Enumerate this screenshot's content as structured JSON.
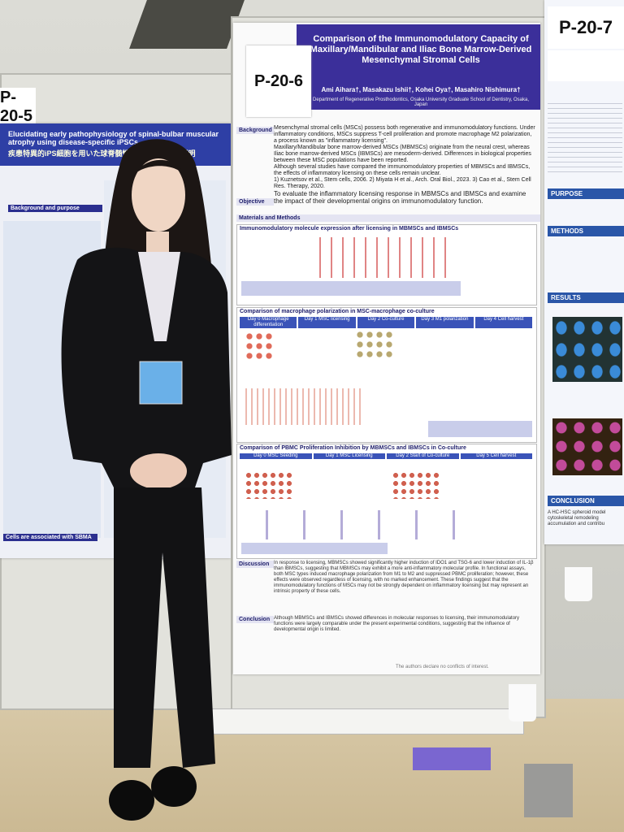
{
  "left_poster": {
    "number": "P-20-5",
    "title": "Elucidating early pathophysiology of spinal-bulbar muscular atrophy using disease-specific iPSCs",
    "title_jp": "疾患特異的iPS細胞を用いた球脊髄性筋萎縮症の病態解明",
    "sections": [
      "Background and purpose",
      "Cells are associated with SBMA"
    ]
  },
  "center_poster": {
    "number": "P-20-6",
    "title": "Comparison of the Immunomodulatory Capacity of Maxillary/Mandibular and Iliac Bone Marrow-Derived Mesenchymal Stromal Cells",
    "authors": "Ami Aihara†, Masakazu Ishii†, Kohei Oya†, Masahiro Nishimura†",
    "affiliation": "Department of Regenerative Prosthodontics, Osaka University Graduate School of Dentistry, Osaka, Japan",
    "background": {
      "heading": "Background",
      "bullets": [
        "Mesenchymal stromal cells (MSCs) possess both regenerative and immunomodulatory functions. Under inflammatory conditions, MSCs suppress T-cell proliferation and promote macrophage M2 polarization, a process known as \"inflammatory licensing\".",
        "Maxillary/Mandibular bone marrow-derived MSCs (MBMSCs) originate from the neural crest, whereas Iliac bone marrow-derived MSCs (IBMSCs) are mesoderm-derived. Differences in biological properties between these MSC populations have been reported.",
        "Although several studies have compared the immunomodulatory properties of MBMSCs and IBMSCs, the effects of inflammatory licensing on these cells remain unclear.",
        "1) Kuznetsov et al., Stem cells, 2006.  2) Miyata H et al., Arch. Oral Biol., 2023.  3) Cao et al., Stem Cell Res. Therapy, 2020."
      ]
    },
    "objective": {
      "heading": "Objective",
      "text": "To evaluate the inflammatory licensing response in MBMSCs and IBMSCs and examine the impact of their developmental origins on immunomodulatory function."
    },
    "methods": {
      "heading": "Materials and Methods",
      "panels": [
        "Immunomodulatory molecule expression after licensing in MBMSCs and IBMSCs",
        "Comparison of macrophage polarization in MSC-macrophage co-culture",
        "Comparison of PBMC Proliferation Inhibition by MBMSCs and IBMSCs in Co-culture"
      ],
      "timeline1": [
        "Day 0 Macrophage differentiation",
        "Day 1 MSC licensing",
        "Day 2 Co-culture",
        "Day 3 M1 polarization",
        "Day 4 Cell harvest"
      ],
      "timeline2": [
        "Day 0 MSC Seeding",
        "Day 1 MSC Licensing",
        "Day 2 Start of Co-culture",
        "Day 5 Cell harvest"
      ]
    },
    "discussion": {
      "heading": "Discussion",
      "text": "In response to licensing, MBMSCs showed significantly higher induction of IDO1 and TSG-6 and lower induction of IL-1β than IBMSCs, suggesting that MBMSCs may exhibit a more anti-inflammatory molecular profile. In functional assays, both MSC types induced macrophage polarization from M1 to M2 and suppressed PBMC proliferation; however, these effects were observed regardless of licensing, with no marked enhancement. These findings suggest that the immunomodulatory functions of MSCs may not be strongly dependent on inflammatory licensing but may represent an intrinsic property of these cells."
    },
    "conclusion": {
      "heading": "Conclusion",
      "text": "Although MBMSCs and IBMSCs showed differences in molecular responses to licensing, their immunomodulatory functions were largely comparable under the present experimental conditions, suggesting that the influence of developmental origin is limited."
    },
    "footer": "The authors declare no conflicts of interest."
  },
  "right_poster": {
    "number": "P-20-7",
    "sections": [
      "PURPOSE",
      "METHODS",
      "RESULTS",
      "CONCLUSION"
    ],
    "conclusion": "A HC-HSC spheroid model cytoskeletal remodeling accumulation and contribu"
  }
}
